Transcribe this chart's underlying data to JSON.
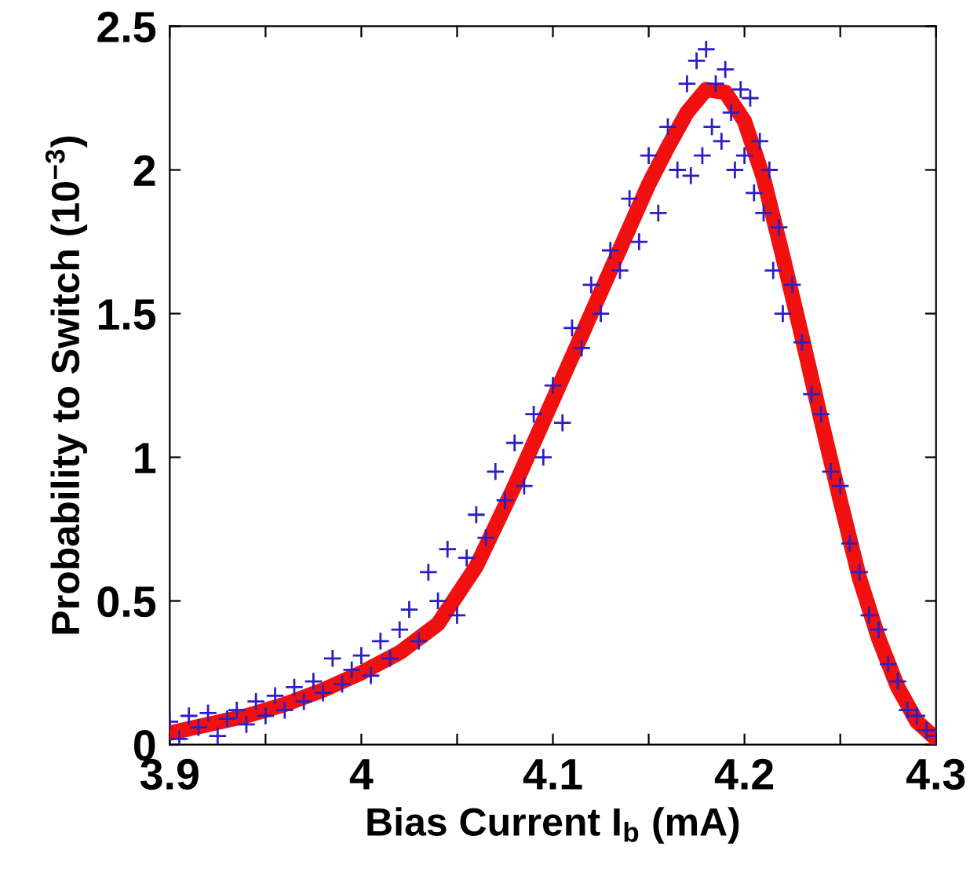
{
  "chart_data": {
    "type": "scatter",
    "xlabel": "Bias Current I$_{b}$ (mA)",
    "ylabel": "Probability to Switch (10$^{−3}$)",
    "xlim": [
      3.9,
      4.3
    ],
    "ylim": [
      0,
      2.5
    ],
    "xticks": [
      3.9,
      {
        "value": 3.95,
        "label": null
      },
      4,
      {
        "value": 4.05,
        "label": null
      },
      4.1,
      {
        "value": 4.15,
        "label": null
      },
      4.2,
      {
        "value": 4.25,
        "label": null
      },
      4.3
    ],
    "yticks": [
      0,
      0.5,
      1,
      1.5,
      2,
      2.5
    ],
    "grid": false,
    "legend": false,
    "series": [
      {
        "marker": "cross",
        "color": "#2a1fc4",
        "x": [
          3.9,
          3.905,
          3.91,
          3.915,
          3.92,
          3.925,
          3.93,
          3.935,
          3.94,
          3.945,
          3.95,
          3.955,
          3.96,
          3.965,
          3.97,
          3.975,
          3.98,
          3.985,
          3.99,
          3.995,
          4.0,
          4.005,
          4.01,
          4.015,
          4.02,
          4.025,
          4.03,
          4.035,
          4.04,
          4.045,
          4.05,
          4.055,
          4.06,
          4.065,
          4.07,
          4.075,
          4.08,
          4.085,
          4.09,
          4.095,
          4.1,
          4.105,
          4.11,
          4.115,
          4.12,
          4.125,
          4.13,
          4.135,
          4.14,
          4.145,
          4.15,
          4.155,
          4.16,
          4.165,
          4.17,
          4.172,
          4.175,
          4.178,
          4.18,
          4.183,
          4.185,
          4.188,
          4.19,
          4.193,
          4.195,
          4.198,
          4.2,
          4.203,
          4.205,
          4.208,
          4.21,
          4.213,
          4.215,
          4.218,
          4.22,
          4.225,
          4.23,
          4.235,
          4.24,
          4.245,
          4.25,
          4.255,
          4.26,
          4.265,
          4.27,
          4.275,
          4.28,
          4.285,
          4.29,
          4.295,
          4.3
        ],
        "values": [
          0.08,
          0.02,
          0.1,
          0.06,
          0.11,
          0.03,
          0.09,
          0.12,
          0.07,
          0.15,
          0.1,
          0.17,
          0.12,
          0.2,
          0.15,
          0.22,
          0.18,
          0.3,
          0.21,
          0.26,
          0.31,
          0.24,
          0.36,
          0.3,
          0.4,
          0.47,
          0.36,
          0.6,
          0.5,
          0.68,
          0.45,
          0.65,
          0.8,
          0.72,
          0.95,
          0.85,
          1.05,
          0.9,
          1.15,
          1.0,
          1.25,
          1.12,
          1.45,
          1.38,
          1.6,
          1.5,
          1.72,
          1.65,
          1.9,
          1.75,
          2.05,
          1.85,
          2.15,
          2.0,
          2.3,
          1.98,
          2.38,
          2.05,
          2.42,
          2.15,
          2.3,
          2.1,
          2.35,
          2.2,
          2.0,
          2.28,
          2.05,
          2.25,
          1.92,
          2.1,
          1.85,
          2.0,
          1.65,
          1.8,
          1.5,
          1.6,
          1.4,
          1.22,
          1.15,
          0.95,
          0.9,
          0.7,
          0.6,
          0.45,
          0.4,
          0.28,
          0.22,
          0.12,
          0.1,
          0.05,
          0.03
        ]
      },
      {
        "type": "line",
        "marker": "none",
        "line_style": "solid",
        "color": "#f01010",
        "x": [
          3.9,
          3.92,
          3.94,
          3.96,
          3.98,
          4.0,
          4.02,
          4.04,
          4.06,
          4.08,
          4.1,
          4.12,
          4.14,
          4.15,
          4.16,
          4.17,
          4.18,
          4.19,
          4.2,
          4.21,
          4.22,
          4.23,
          4.24,
          4.25,
          4.26,
          4.27,
          4.28,
          4.29,
          4.3
        ],
        "values": [
          0.04,
          0.07,
          0.1,
          0.14,
          0.19,
          0.25,
          0.32,
          0.42,
          0.62,
          0.9,
          1.2,
          1.5,
          1.8,
          1.95,
          2.08,
          2.2,
          2.28,
          2.27,
          2.17,
          1.97,
          1.7,
          1.42,
          1.13,
          0.85,
          0.58,
          0.37,
          0.2,
          0.08,
          0.02
        ]
      }
    ]
  }
}
